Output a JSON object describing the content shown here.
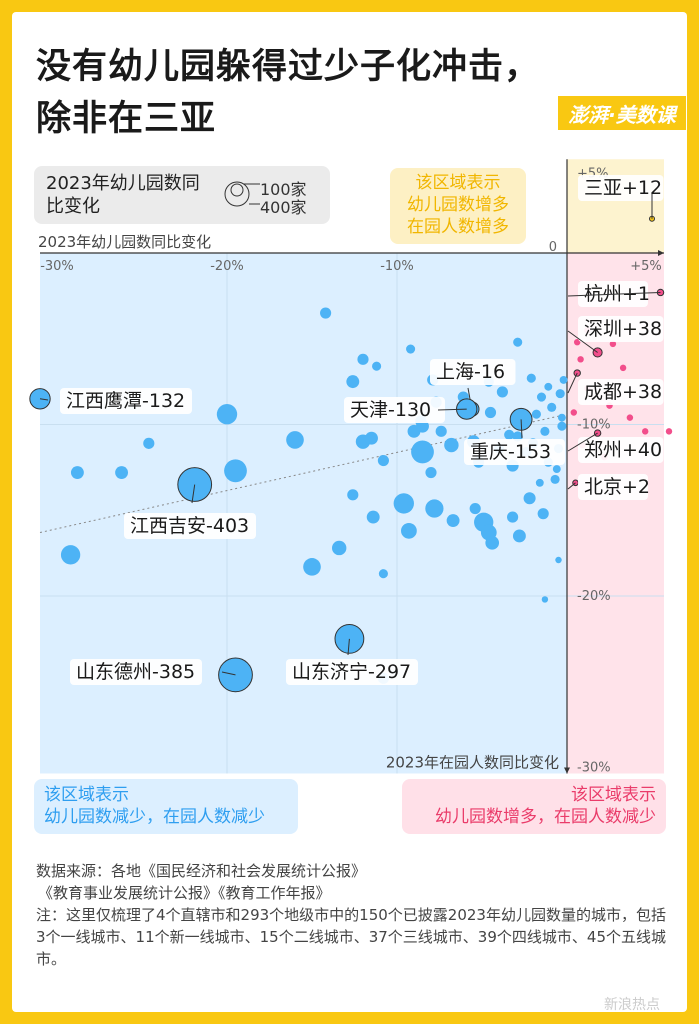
{
  "title_line1": "没有幼儿园躲得过少子化冲击，",
  "title_line2": "除非在三亚",
  "brand": "澎湃·美数课",
  "legend": {
    "title": "2023年幼儿园数同比变化",
    "size1": "100家",
    "size2": "400家"
  },
  "zones": {
    "yellow": [
      "该区域表示",
      "幼儿园数增多",
      "在园人数增多"
    ],
    "blue": [
      "该区域表示",
      "幼儿园数减少，在园人数减少"
    ],
    "pink": [
      "该区域表示",
      "幼儿园数增多，在园人数减少"
    ]
  },
  "colors": {
    "blue": "#4db3f5",
    "pink": "#f24e8b",
    "yellow": "#f5c518",
    "blue_zone": "#dcefff",
    "pink_zone": "#ffe3ea",
    "yellow_zone": "#fdf3cf"
  },
  "chart_data": {
    "type": "scatter",
    "xlabel": "2023年幼儿园数同比变化",
    "ylabel": "2023年在园人数同比变化",
    "x_ticks": [
      "-30%",
      "-20%",
      "-10%",
      "+5%"
    ],
    "y_ticks": [
      "+5%",
      "0",
      "-10%",
      "-20%",
      "-30%"
    ],
    "xlim": [
      -31,
      6
    ],
    "ylim": [
      -30,
      5
    ],
    "trend_line": [
      [
        -31,
        -16.3
      ],
      [
        0,
        -9.4
      ]
    ],
    "labeled_points": [
      {
        "name": "三亚+12",
        "x": 5,
        "y": 2,
        "count": 10,
        "color": "yellow"
      },
      {
        "name": "杭州+1",
        "x": 5.5,
        "y": -2.3,
        "count": 20,
        "color": "pink"
      },
      {
        "name": "深圳+38",
        "x": 1.8,
        "y": -5.8,
        "count": 40,
        "color": "pink"
      },
      {
        "name": "成都+38",
        "x": 0.6,
        "y": -7,
        "count": 20,
        "color": "pink"
      },
      {
        "name": "郑州+40",
        "x": 1.8,
        "y": -10.5,
        "count": 20,
        "color": "pink"
      },
      {
        "name": "北京+2",
        "x": 0.5,
        "y": -13.4,
        "count": 15,
        "color": "pink"
      },
      {
        "name": "上海-16",
        "x": -5.6,
        "y": -9.1,
        "count": 100,
        "color": "blue"
      },
      {
        "name": "天津-130",
        "x": -5.9,
        "y": -9.1,
        "count": 200,
        "color": "blue"
      },
      {
        "name": "重庆-153",
        "x": -2.7,
        "y": -9.7,
        "count": 230,
        "color": "blue"
      },
      {
        "name": "江西鹰潭-132",
        "x": -31,
        "y": -8.5,
        "count": 200,
        "color": "blue"
      },
      {
        "name": "江西吉安-403",
        "x": -21.9,
        "y": -13.5,
        "count": 550,
        "color": "blue"
      },
      {
        "name": "山东济宁-297",
        "x": -12.8,
        "y": -22.5,
        "count": 400,
        "color": "blue"
      },
      {
        "name": "山东德州-385",
        "x": -19.5,
        "y": -24.6,
        "count": 550,
        "color": "blue"
      }
    ],
    "other_points": [
      [
        -14.2,
        -3.5,
        60
      ],
      [
        -12,
        -6.2,
        60
      ],
      [
        -12.6,
        -7.5,
        80
      ],
      [
        -20,
        -9.4,
        200
      ],
      [
        -16,
        -10.9,
        150
      ],
      [
        -24.6,
        -11.1,
        60
      ],
      [
        -12,
        -11,
        100
      ],
      [
        -11.5,
        -10.8,
        80
      ],
      [
        -9,
        -10.4,
        80
      ],
      [
        -8.5,
        -10.1,
        80
      ],
      [
        -8.5,
        -11.6,
        250
      ],
      [
        -10.8,
        -12.1,
        60
      ],
      [
        -19.5,
        -12.7,
        250
      ],
      [
        -26.2,
        -12.8,
        80
      ],
      [
        -28.8,
        -12.8,
        80
      ],
      [
        -12.6,
        -14.1,
        60
      ],
      [
        -8,
        -12.8,
        60
      ],
      [
        -7.8,
        -14.9,
        160
      ],
      [
        -9.6,
        -14.6,
        200
      ],
      [
        -11.4,
        -15.4,
        80
      ],
      [
        -9.3,
        -16.2,
        120
      ],
      [
        -6.7,
        -15.6,
        80
      ],
      [
        -5.4,
        -14.9,
        60
      ],
      [
        -4.9,
        -15.7,
        180
      ],
      [
        -4.6,
        -16.3,
        120
      ],
      [
        -4.4,
        -16.9,
        90
      ],
      [
        -13.4,
        -17.2,
        100
      ],
      [
        -15,
        -18.3,
        150
      ],
      [
        -29.2,
        -17.6,
        180
      ],
      [
        -10.8,
        -18.7,
        40
      ],
      [
        -3.2,
        -15.4,
        60
      ],
      [
        -2.8,
        -16.5,
        80
      ],
      [
        -2.2,
        -14.3,
        70
      ],
      [
        -1.4,
        -15.2,
        60
      ],
      [
        -8.6,
        -9.8,
        60
      ],
      [
        -7.4,
        -10.4,
        60
      ],
      [
        -6.8,
        -11.2,
        100
      ],
      [
        -5.5,
        -11,
        80
      ],
      [
        -5.2,
        -12.2,
        60
      ],
      [
        -4.5,
        -9.3,
        60
      ],
      [
        -4,
        -11.4,
        50
      ],
      [
        -3.8,
        -8.1,
        60
      ],
      [
        -3.4,
        -10.6,
        50
      ],
      [
        -3.2,
        -12.4,
        70
      ],
      [
        -2.9,
        -10.7,
        50
      ],
      [
        -2.4,
        -11.6,
        50
      ],
      [
        -2.1,
        -7.3,
        40
      ],
      [
        -1.8,
        -9.4,
        40
      ],
      [
        -1.5,
        -8.4,
        40
      ],
      [
        -1.3,
        -10.4,
        40
      ],
      [
        -1.1,
        -12.2,
        40
      ],
      [
        -0.9,
        -9,
        40
      ],
      [
        -0.7,
        -13.2,
        40
      ],
      [
        -0.5,
        -11.4,
        40
      ],
      [
        -0.4,
        -8.2,
        40
      ],
      [
        -0.3,
        -10.1,
        40
      ],
      [
        -0.6,
        -12.6,
        30
      ],
      [
        -0.2,
        -7.4,
        30
      ],
      [
        -0.3,
        -9.6,
        30
      ],
      [
        -1.6,
        -13.4,
        30
      ],
      [
        -2.9,
        -5.2,
        40
      ],
      [
        -4.6,
        -7.5,
        50
      ],
      [
        -7.9,
        -7.4,
        60
      ],
      [
        -9.2,
        -5.6,
        40
      ],
      [
        -11.2,
        -6.6,
        40
      ],
      [
        -1.1,
        -7.8,
        30
      ],
      [
        -1.3,
        -20.2,
        20
      ],
      [
        -0.5,
        -17.9,
        20
      ],
      [
        -10.8,
        -24.8,
        60
      ],
      [
        -7.7,
        -8.7,
        60
      ],
      [
        -6.1,
        -8.4,
        60
      ],
      [
        -2,
        -11.1,
        50
      ],
      [
        0.6,
        -5.2,
        20
      ],
      [
        2.7,
        -5.3,
        20
      ],
      [
        0.8,
        -6.2,
        20
      ],
      [
        3.3,
        -6.7,
        20
      ],
      [
        1.2,
        -7.9,
        20
      ],
      [
        3.7,
        -9.6,
        20
      ],
      [
        2.5,
        -8.9,
        20
      ],
      [
        0.4,
        -9.3,
        20
      ],
      [
        4.6,
        -10.4,
        20
      ],
      [
        0.9,
        -11.2,
        20
      ],
      [
        2.2,
        -11.9,
        20
      ],
      [
        1.2,
        -4.5,
        20
      ],
      [
        6,
        -10.4,
        20
      ]
    ]
  },
  "source": [
    "数据来源：各地《国民经济和社会发展统计公报》",
    "《教育事业发展统计公报》《教育工作年报》",
    "注：这里仅梳理了4个直辖市和293个地级市中的150个已披露2023年幼儿园数量的城市，包括3个一线城市、11个新一线城市、15个二线城市、37个三线城市、39个四线城市、45个五线城市。"
  ],
  "watermark": "新浪热点"
}
